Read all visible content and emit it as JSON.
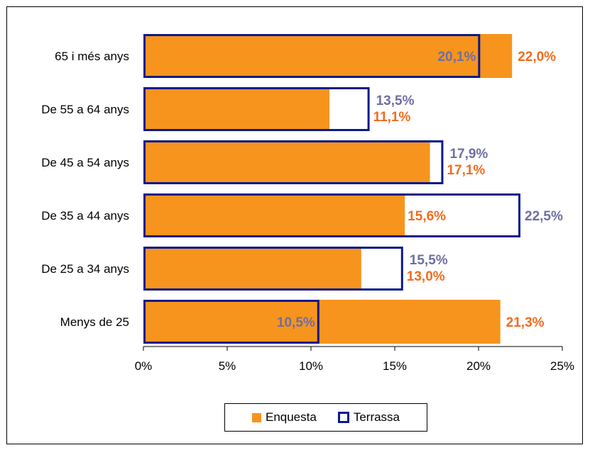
{
  "chart_data": {
    "type": "bar",
    "orientation": "horizontal",
    "categories": [
      "65 i més anys",
      "De 55 a 64 anys",
      "De 45 a 54 anys",
      "De 35 a 44 anys",
      "De 25 a 34 anys",
      "Menys de 25"
    ],
    "series": [
      {
        "name": "Enquesta",
        "values": [
          22.0,
          11.1,
          17.1,
          15.6,
          13.0,
          21.3
        ],
        "labels": [
          "22,0%",
          "11,1%",
          "17,1%",
          "15,6%",
          "13,0%",
          "21,3%"
        ],
        "color": "#f7941d",
        "label_color": "#f26b1d"
      },
      {
        "name": "Terrassa",
        "values": [
          20.1,
          13.5,
          17.9,
          22.5,
          15.5,
          10.5
        ],
        "labels": [
          "20,1%",
          "13,5%",
          "17,9%",
          "22,5%",
          "15,5%",
          "10,5%"
        ],
        "color": "#0a1a8c",
        "label_color": "#6d6ea3"
      }
    ],
    "xlim": [
      0,
      25
    ],
    "ticks": [
      0,
      5,
      10,
      15,
      20,
      25
    ],
    "tick_labels": [
      "0%",
      "5%",
      "10%",
      "15%",
      "20%",
      "25%"
    ],
    "legend_position": "bottom",
    "grid": false
  },
  "legend": {
    "enquesta_label": "Enquesta",
    "terrassa_label": "Terrassa"
  }
}
